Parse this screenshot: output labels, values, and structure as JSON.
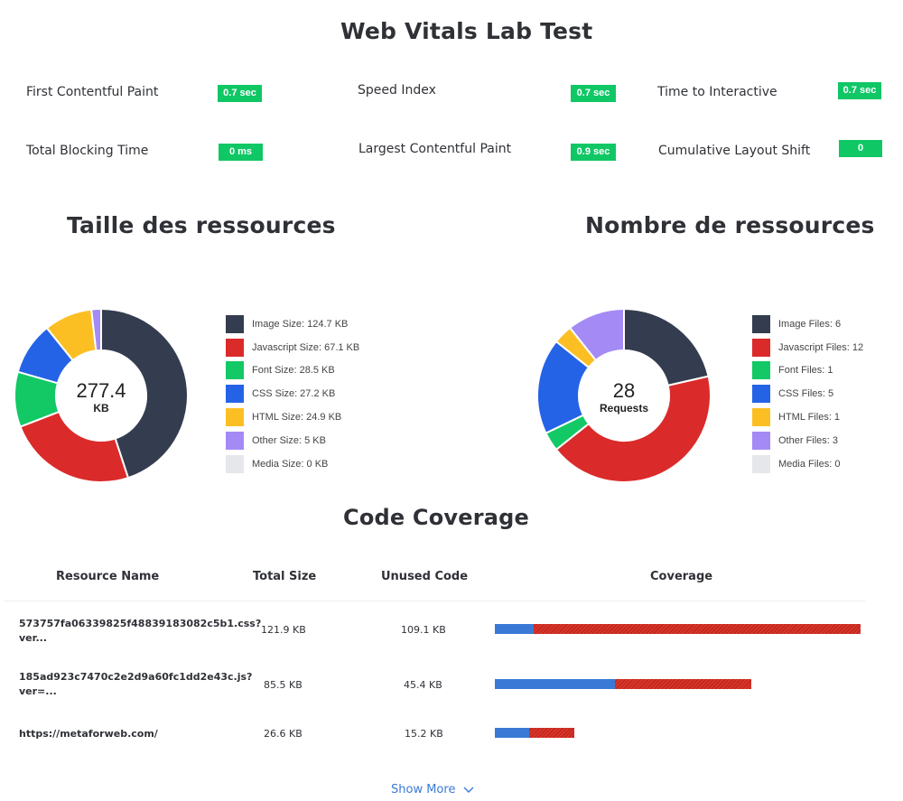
{
  "page_title": "Web Vitals Lab Test",
  "metrics": [
    {
      "label": "First Contentful Paint",
      "value": "0.7 sec"
    },
    {
      "label": "Speed Index",
      "value": "0.7 sec"
    },
    {
      "label": "Time to Interactive",
      "value": "0.7 sec"
    },
    {
      "label": "Total Blocking Time",
      "value": "0 ms"
    },
    {
      "label": "Largest Contentful Paint",
      "value": "0.9 sec"
    },
    {
      "label": "Cumulative Layout Shift",
      "value": "0"
    }
  ],
  "size_section": {
    "title": "Taille des ressources",
    "center_value": "277.4",
    "center_unit": "KB",
    "legend": [
      "Image Size: 124.7 KB",
      "Javascript Size: 67.1 KB",
      "Font Size: 28.5 KB",
      "CSS Size: 27.2 KB",
      "HTML Size: 24.9 KB",
      "Other Size: 5 KB",
      "Media Size: 0 KB"
    ]
  },
  "count_section": {
    "title": "Nombre de ressources",
    "center_value": "28",
    "center_unit": "Requests",
    "legend": [
      "Image Files: 6",
      "Javascript Files: 12",
      "Font Files: 1",
      "CSS Files: 5",
      "HTML Files: 1",
      "Other Files: 3",
      "Media Files: 0"
    ]
  },
  "chart_data": [
    {
      "type": "pie",
      "title": "Taille des ressources",
      "categories": [
        "Image",
        "Javascript",
        "Font",
        "CSS",
        "HTML",
        "Other",
        "Media"
      ],
      "values": [
        124.7,
        67.1,
        28.5,
        27.2,
        24.9,
        5,
        0
      ],
      "colors": [
        "#343d4f",
        "#db2a2a",
        "#12c965",
        "#2463e6",
        "#fbbf24",
        "#a48af5",
        "#e5e7eb"
      ]
    },
    {
      "type": "pie",
      "title": "Nombre de ressources",
      "categories": [
        "Image",
        "Javascript",
        "Font",
        "CSS",
        "HTML",
        "Other",
        "Media"
      ],
      "values": [
        6,
        12,
        1,
        5,
        1,
        3,
        0
      ],
      "colors": [
        "#343d4f",
        "#db2a2a",
        "#12c965",
        "#2463e6",
        "#fbbf24",
        "#a48af5",
        "#e5e7eb"
      ]
    }
  ],
  "coverage": {
    "title": "Code Coverage",
    "headers": {
      "name": "Resource Name",
      "total": "Total Size",
      "unused": "Unused Code",
      "coverage": "Coverage"
    },
    "rows": [
      {
        "name_line1": "573757fa06339825f48839183082c5b1.css?",
        "name_line2": "ver...",
        "total": "121.9 KB",
        "unused": "109.1 KB",
        "total_kb": 121.9,
        "unused_kb": 109.1
      },
      {
        "name_line1": "185ad923c7470c2e2d9a60fc1dd2e43c.js?",
        "name_line2": "ver=...",
        "total": "85.5 KB",
        "unused": "45.4 KB",
        "total_kb": 85.5,
        "unused_kb": 45.4
      },
      {
        "name_line1": "https://metaforweb.com/",
        "name_line2": "",
        "total": "26.6 KB",
        "unused": "15.2 KB",
        "total_kb": 26.6,
        "unused_kb": 15.2
      }
    ],
    "show_more": "Show More",
    "used_color": "#3a7ad6",
    "unused_color": "#d9352a"
  }
}
